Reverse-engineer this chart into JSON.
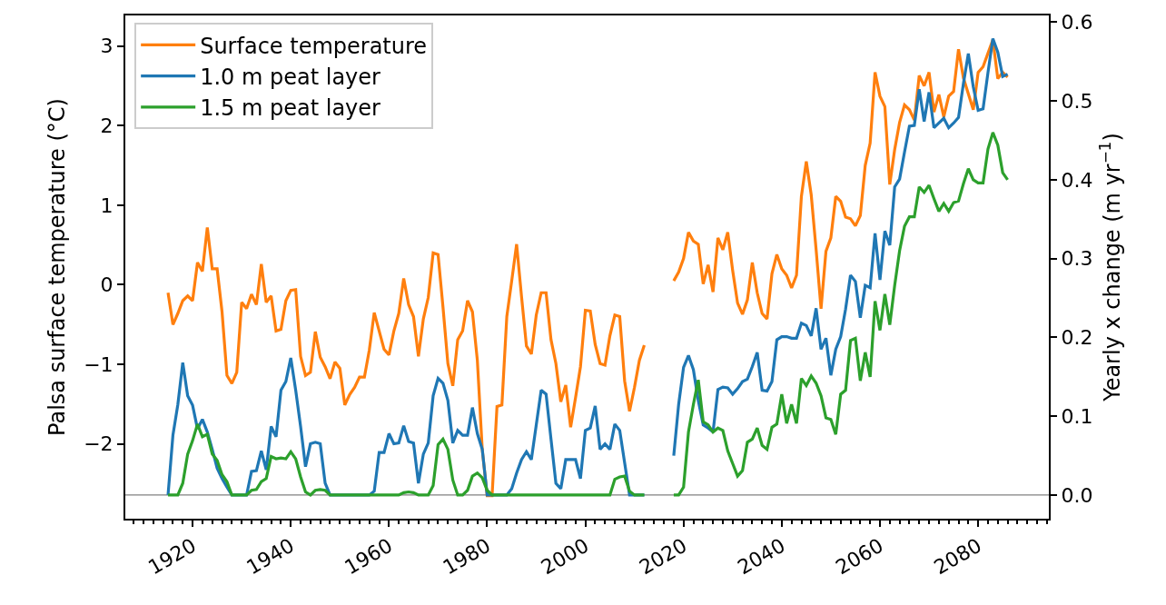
{
  "chart_data": {
    "type": "line",
    "ylabel": "Palsa surface temperature (°C)",
    "y2label": "Yearly x change (m yr$^{−1}$)",
    "x": [
      1915,
      1916,
      1917,
      1918,
      1919,
      1920,
      1921,
      1922,
      1923,
      1924,
      1925,
      1926,
      1927,
      1928,
      1929,
      1930,
      1931,
      1932,
      1933,
      1934,
      1935,
      1936,
      1937,
      1938,
      1939,
      1940,
      1941,
      1942,
      1943,
      1944,
      1945,
      1946,
      1947,
      1948,
      1949,
      1950,
      1951,
      1952,
      1953,
      1954,
      1955,
      1956,
      1957,
      1958,
      1959,
      1960,
      1961,
      1962,
      1963,
      1964,
      1965,
      1966,
      1967,
      1968,
      1969,
      1970,
      1971,
      1972,
      1973,
      1974,
      1975,
      1976,
      1977,
      1978,
      1979,
      1980,
      1981,
      1982,
      1983,
      1984,
      1985,
      1986,
      1987,
      1988,
      1989,
      1990,
      1991,
      1992,
      1993,
      1994,
      1995,
      1996,
      1997,
      1998,
      1999,
      2000,
      2001,
      2002,
      2003,
      2004,
      2005,
      2006,
      2007,
      2008,
      2009,
      2010,
      2011,
      2012,
      2013,
      2014,
      2015,
      2016,
      2017,
      2018,
      2019,
      2020,
      2021,
      2022,
      2023,
      2024,
      2025,
      2026,
      2027,
      2028,
      2029,
      2030,
      2031,
      2032,
      2033,
      2034,
      2035,
      2036,
      2037,
      2038,
      2039,
      2040,
      2041,
      2042,
      2043,
      2044,
      2045,
      2046,
      2047,
      2048,
      2049,
      2050,
      2051,
      2052,
      2053,
      2054,
      2055,
      2056,
      2057,
      2058,
      2059,
      2060,
      2061,
      2062,
      2063,
      2064,
      2065,
      2066,
      2067,
      2068,
      2069,
      2070,
      2071,
      2072,
      2073,
      2074,
      2075,
      2076,
      2077,
      2078,
      2079,
      2080,
      2081,
      2082,
      2083,
      2084,
      2085,
      2086
    ],
    "series": [
      {
        "name": "Surface temperature",
        "color": "#ff7f0e",
        "values": [
          -0.1,
          -0.5,
          -0.36,
          -0.2,
          -0.14,
          -0.2,
          0.28,
          0.17,
          0.72,
          0.2,
          0.2,
          -0.34,
          -1.14,
          -1.24,
          -1.1,
          -0.22,
          -0.3,
          -0.12,
          -0.25,
          0.26,
          -0.22,
          -0.14,
          -0.58,
          -0.56,
          -0.2,
          -0.07,
          -0.06,
          -0.9,
          -1.14,
          -1.1,
          -0.59,
          -0.91,
          -1.03,
          -1.18,
          -0.97,
          -1.05,
          -1.51,
          -1.38,
          -1.29,
          -1.16,
          -1.16,
          -0.82,
          -0.35,
          -0.58,
          -0.81,
          -0.88,
          -0.58,
          -0.36,
          0.08,
          -0.25,
          -0.4,
          -0.9,
          -0.43,
          -0.16,
          0.4,
          0.38,
          -0.28,
          -0.99,
          -1.27,
          -0.69,
          -0.58,
          -0.2,
          -0.34,
          -0.95,
          -2.07,
          -2.65,
          -2.65,
          -1.53,
          -1.51,
          -0.4,
          0.05,
          0.51,
          -0.15,
          -0.77,
          -0.87,
          -0.38,
          -0.1,
          -0.1,
          -0.69,
          -0.99,
          -1.47,
          -1.26,
          -1.79,
          -1.42,
          -1.03,
          -0.32,
          -0.33,
          -0.75,
          -0.99,
          -1.01,
          -0.64,
          -0.38,
          -0.4,
          -1.21,
          -1.59,
          -1.29,
          -0.95,
          -0.76,
          null,
          null,
          null,
          null,
          null,
          0.05,
          0.16,
          0.33,
          0.66,
          0.55,
          0.51,
          0.01,
          0.25,
          -0.09,
          0.59,
          0.44,
          0.66,
          0.18,
          -0.23,
          -0.37,
          -0.19,
          0.28,
          -0.1,
          -0.36,
          -0.43,
          0.14,
          0.38,
          0.2,
          0.12,
          -0.04,
          0.12,
          1.11,
          1.55,
          1.13,
          0.44,
          -0.3,
          0.42,
          0.59,
          1.11,
          1.05,
          0.85,
          0.83,
          0.74,
          0.87,
          1.5,
          1.78,
          2.67,
          2.37,
          2.24,
          1.26,
          1.7,
          2.04,
          2.26,
          2.2,
          2.07,
          2.63,
          2.5,
          2.67,
          2.17,
          2.39,
          2.11,
          2.37,
          2.43,
          2.96,
          2.6,
          2.4,
          2.2,
          2.67,
          2.74,
          2.91,
          3.08,
          2.59,
          2.67,
          2.61
        ]
      },
      {
        "name": "1.0 m peat layer",
        "color": "#1f77b4",
        "axis": "y2",
        "values": [
          0,
          0.076,
          0.115,
          0.168,
          0.126,
          0.114,
          0.084,
          0.096,
          0.08,
          0.058,
          0.034,
          0.021,
          0.01,
          0,
          0,
          0,
          0,
          0.03,
          0.031,
          0.056,
          0.032,
          0.087,
          0.074,
          0.133,
          0.144,
          0.174,
          0.133,
          0.087,
          0.036,
          0.065,
          0.067,
          0.065,
          0.015,
          0,
          0,
          0,
          0,
          0,
          0,
          0,
          0,
          0,
          0.005,
          0.054,
          0.054,
          0.078,
          0.065,
          0.066,
          0.088,
          0.068,
          0.066,
          0.015,
          0.052,
          0.066,
          0.126,
          0.148,
          0.142,
          0.12,
          0.066,
          0.082,
          0.076,
          0.076,
          0.111,
          0.078,
          0.058,
          0,
          0,
          0,
          0,
          0,
          0.008,
          0.028,
          0.045,
          0.055,
          0.045,
          0.089,
          0.133,
          0.128,
          0.071,
          0.015,
          0.008,
          0.045,
          0.045,
          0.045,
          0.021,
          0.082,
          0.085,
          0.113,
          0.058,
          0.065,
          0.058,
          0.09,
          0.082,
          0.041,
          0,
          0,
          0,
          0,
          null,
          null,
          null,
          null,
          null,
          0.05,
          0.115,
          0.162,
          0.177,
          0.159,
          0.12,
          0.089,
          0.085,
          0.08,
          0.134,
          0.137,
          0.136,
          0.128,
          0.135,
          0.144,
          0.147,
          0.163,
          0.181,
          0.133,
          0.132,
          0.144,
          0.197,
          0.201,
          0.201,
          0.199,
          0.199,
          0.218,
          0.215,
          0.202,
          0.237,
          0.185,
          0.199,
          0.152,
          0.185,
          0.201,
          0.236,
          0.279,
          0.271,
          0.225,
          0.266,
          0.263,
          0.332,
          0.273,
          0.335,
          0.317,
          0.391,
          0.401,
          0.435,
          0.468,
          0.469,
          0.515,
          0.474,
          0.511,
          0.466,
          0.472,
          0.478,
          0.466,
          0.472,
          0.479,
          0.522,
          0.56,
          0.518,
          0.488,
          0.49,
          0.536,
          0.579,
          0.562,
          0.531,
          0.534
        ]
      },
      {
        "name": "1.5 m peat layer",
        "color": "#2ca02c",
        "axis": "y2",
        "values": [
          0,
          0,
          0,
          0.015,
          0.052,
          0.069,
          0.09,
          0.074,
          0.077,
          0.052,
          0.044,
          0.026,
          0.017,
          0,
          0,
          0,
          0,
          0.006,
          0.007,
          0.017,
          0.021,
          0.049,
          0.046,
          0.047,
          0.046,
          0.055,
          0.046,
          0.023,
          0.004,
          0,
          0.006,
          0.007,
          0.006,
          0,
          0,
          0,
          0,
          0,
          0,
          0,
          0,
          0,
          0,
          0,
          0,
          0,
          0,
          0,
          0.003,
          0.004,
          0.003,
          0,
          0,
          0,
          0.012,
          0.064,
          0.071,
          0.058,
          0.019,
          0,
          0,
          0.006,
          0.024,
          0.028,
          0.022,
          0.006,
          0,
          0,
          0,
          0,
          0,
          0,
          0,
          0,
          0,
          0,
          0,
          0,
          0,
          0,
          0,
          0,
          0,
          0,
          0,
          0,
          0,
          0,
          0,
          0,
          0,
          0.02,
          0.023,
          0.024,
          0.005,
          0,
          0,
          0,
          null,
          null,
          null,
          null,
          null,
          0,
          0,
          0.01,
          0.08,
          0.115,
          0.146,
          0.093,
          0.089,
          0.08,
          0.085,
          0.082,
          0.056,
          0.04,
          0.024,
          0.031,
          0.067,
          0.071,
          0.085,
          0.063,
          0.058,
          0.086,
          0.09,
          0.128,
          0.091,
          0.115,
          0.091,
          0.148,
          0.139,
          0.151,
          0.142,
          0.126,
          0.098,
          0.096,
          0.077,
          0.128,
          0.133,
          0.196,
          0.199,
          0.145,
          0.181,
          0.15,
          0.246,
          0.209,
          0.255,
          0.216,
          0.266,
          0.31,
          0.341,
          0.353,
          0.353,
          0.391,
          0.384,
          0.393,
          0.376,
          0.36,
          0.37,
          0.36,
          0.371,
          0.373,
          0.395,
          0.414,
          0.4,
          0.396,
          0.396,
          0.439,
          0.46,
          0.444,
          0.409,
          0.4
        ]
      }
    ],
    "xlim": [
      1906.3,
      2094.4
    ],
    "xticks": [
      1920,
      1940,
      1960,
      1980,
      2000,
      2020,
      2040,
      2060,
      2080
    ],
    "ylim": [
      -2.94,
      3.385
    ],
    "yticks": [
      {
        "value": -2,
        "label": "−2"
      },
      {
        "value": -1,
        "label": "−1"
      },
      0,
      1,
      2,
      3
    ],
    "y2lim": [
      -0.03,
      0.6085
    ],
    "y2ticks": [
      {
        "value": 0,
        "label": "0.0"
      },
      0.1,
      0.2,
      0.3,
      0.4,
      0.5,
      0.6
    ],
    "ref_lines": [
      {
        "axis": "y2",
        "value": 0,
        "color": "#808080"
      }
    ],
    "legend": "top left",
    "grid": false,
    "marker": "none",
    "line_style": "solid"
  }
}
